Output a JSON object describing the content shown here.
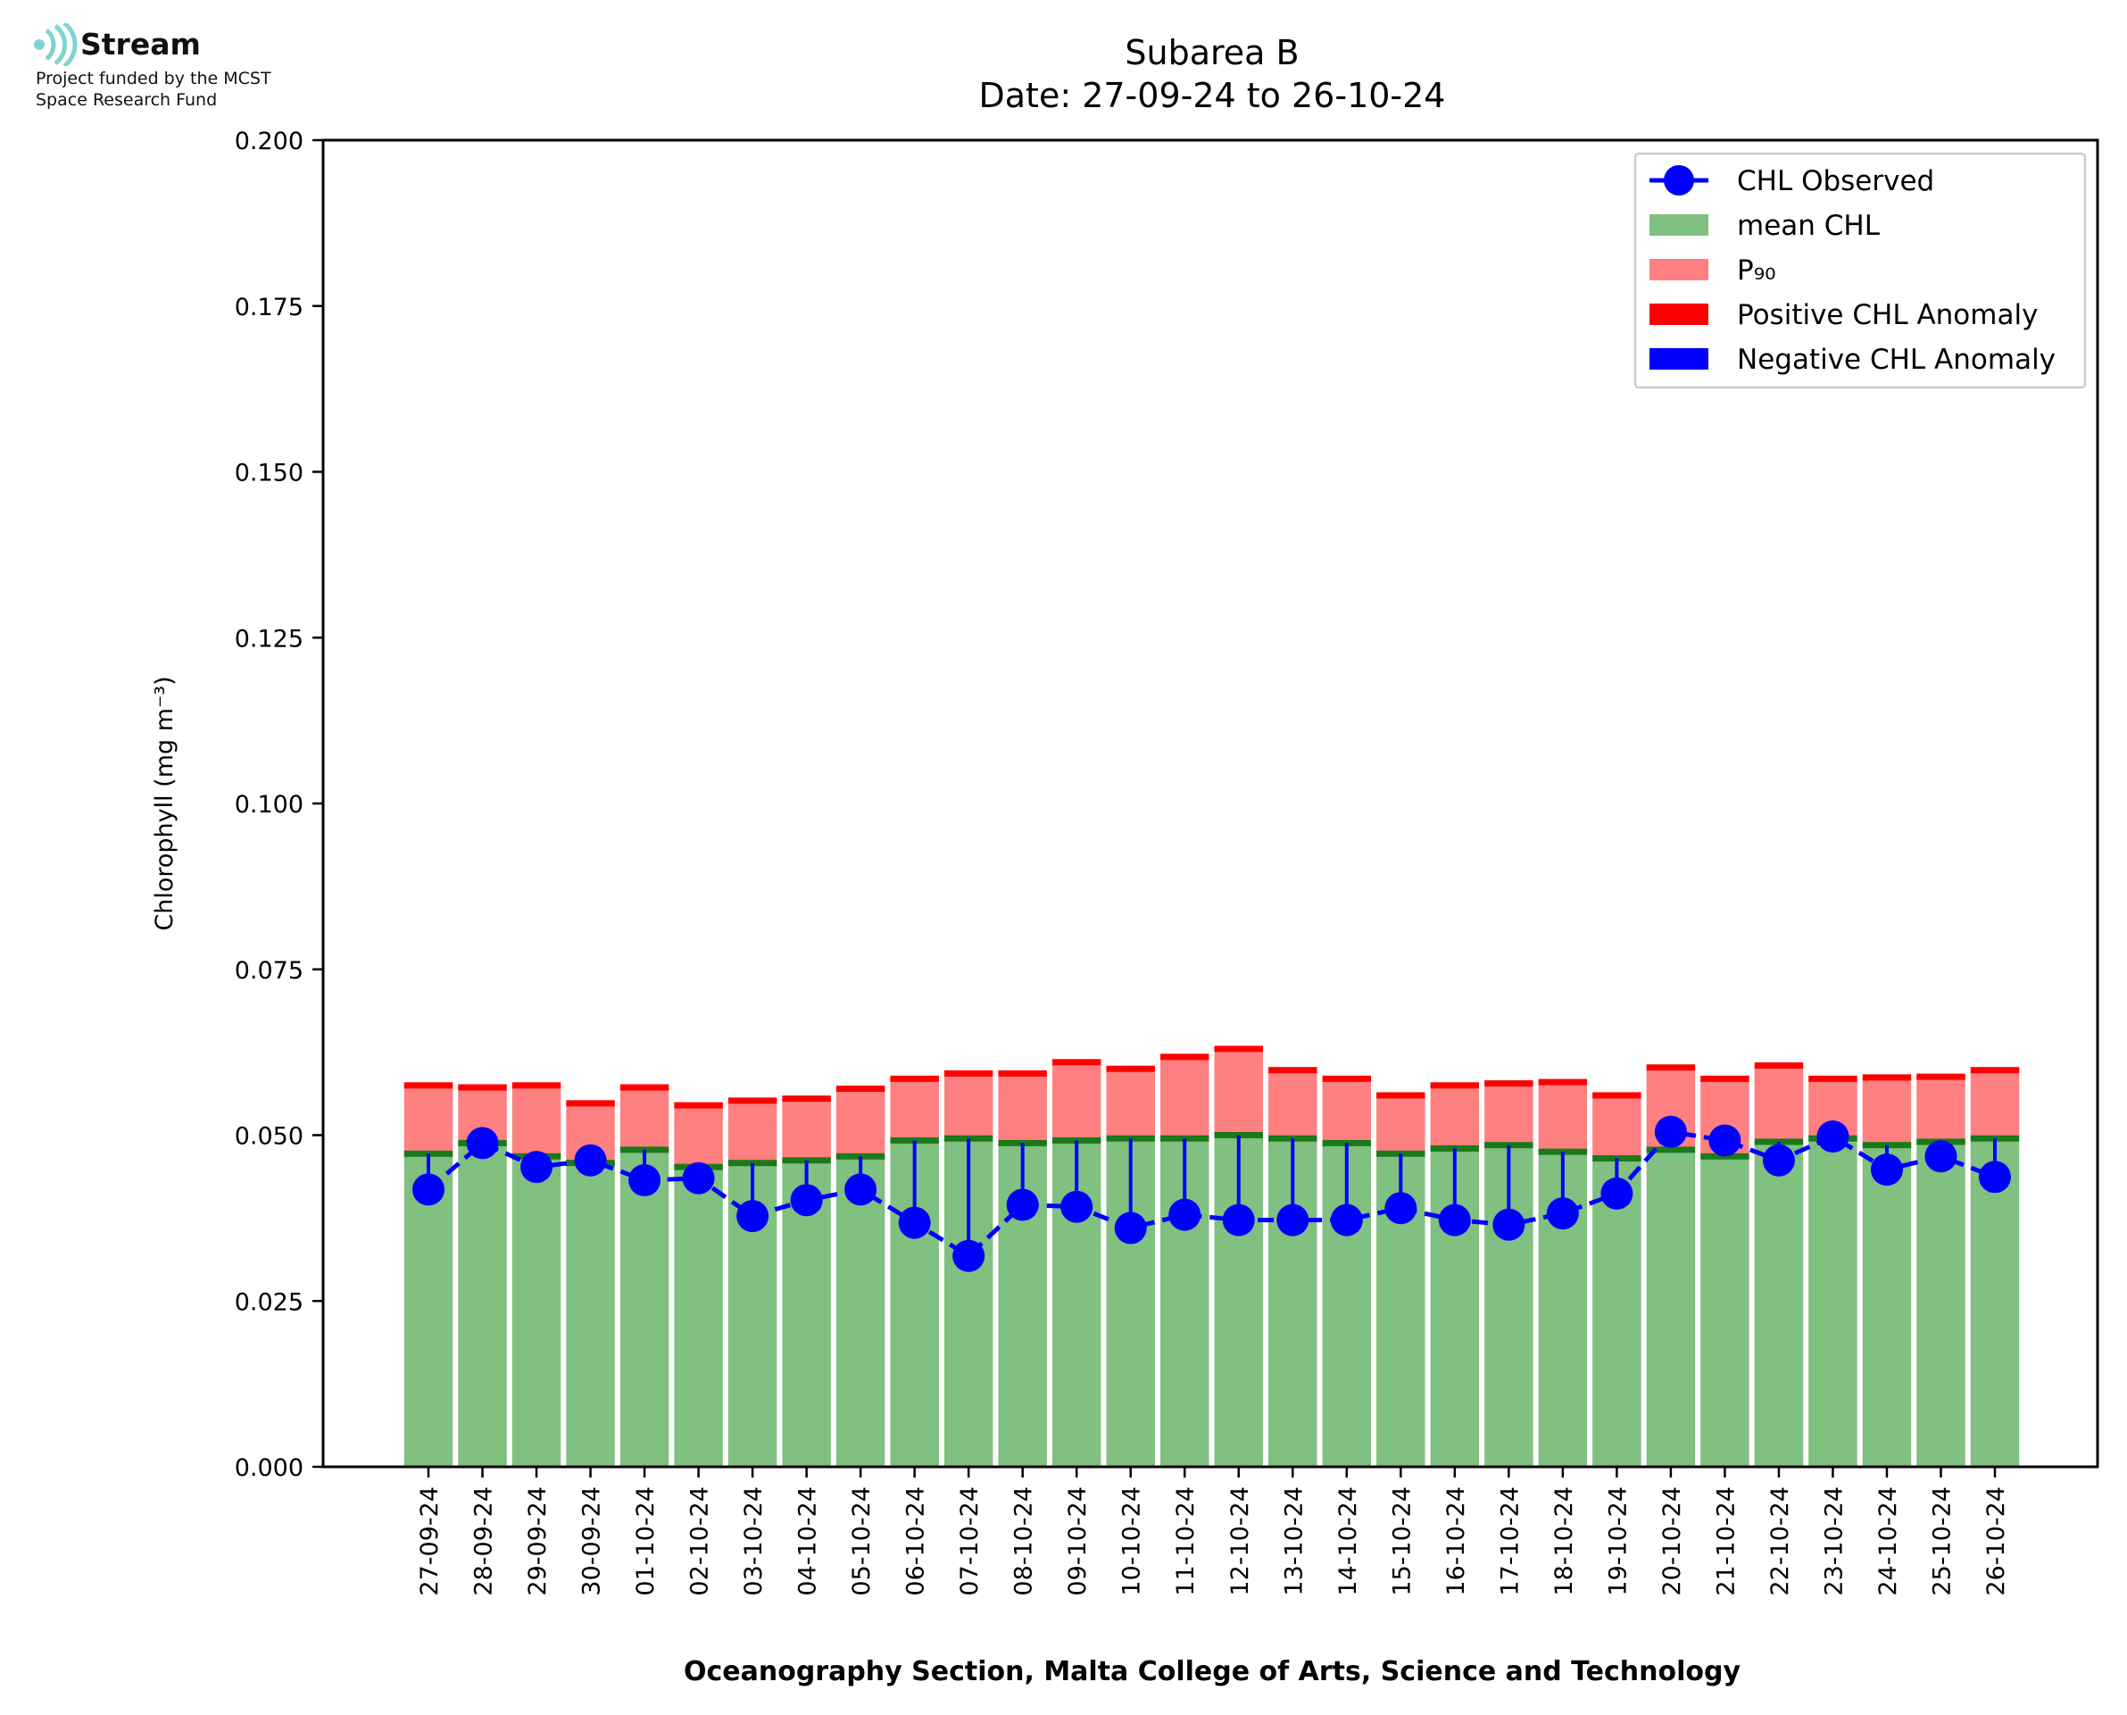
{
  "logo": {
    "brand": "Stream",
    "funded_line1": "Project funded by the MCST",
    "funded_line2": "Space Research Fund",
    "color": "#7fd3d3"
  },
  "chart_data": {
    "type": "bar",
    "title": "Subarea B",
    "subtitle": "Date: 27-09-24 to 26-10-24",
    "xlabel": "Oceanography Section, Malta College of Arts, Science and Technology",
    "ylabel": "Chlorophyll (mg m⁻³)",
    "ylim": [
      0,
      0.2
    ],
    "yticks": [
      "0.000",
      "0.025",
      "0.050",
      "0.075",
      "0.100",
      "0.125",
      "0.150",
      "0.175",
      "0.200"
    ],
    "legend_position": "top-right",
    "grid": false,
    "categories": [
      "27-09-24",
      "28-09-24",
      "29-09-24",
      "30-09-24",
      "01-10-24",
      "02-10-24",
      "03-10-24",
      "04-10-24",
      "05-10-24",
      "06-10-24",
      "07-10-24",
      "08-10-24",
      "09-10-24",
      "10-10-24",
      "11-10-24",
      "12-10-24",
      "13-10-24",
      "14-10-24",
      "15-10-24",
      "16-10-24",
      "17-10-24",
      "18-10-24",
      "19-10-24",
      "20-10-24",
      "21-10-24",
      "22-10-24",
      "23-10-24",
      "24-10-24",
      "25-10-24",
      "26-10-24"
    ],
    "series": [
      {
        "name": "CHL Observed",
        "color": "#0000ff",
        "values": [
          0.0418,
          0.0488,
          0.0452,
          0.0462,
          0.0432,
          0.0435,
          0.0378,
          0.0402,
          0.0418,
          0.0368,
          0.0318,
          0.0395,
          0.0392,
          0.036,
          0.038,
          0.0372,
          0.0372,
          0.0372,
          0.039,
          0.0372,
          0.0365,
          0.0382,
          0.0412,
          0.0505,
          0.0492,
          0.0462,
          0.0498,
          0.0448,
          0.0468,
          0.0437
        ]
      },
      {
        "name": "mean CHL",
        "color": "#80c080",
        "values": [
          0.0472,
          0.0488,
          0.0468,
          0.0458,
          0.0478,
          0.0452,
          0.0458,
          0.0462,
          0.0468,
          0.0492,
          0.0495,
          0.0488,
          0.0492,
          0.0495,
          0.0495,
          0.05,
          0.0495,
          0.0488,
          0.0472,
          0.048,
          0.0485,
          0.0475,
          0.0465,
          0.0478,
          0.0468,
          0.049,
          0.0495,
          0.0485,
          0.049,
          0.0495
        ]
      },
      {
        "name": "P₉₀",
        "color": "#ff8080",
        "values": [
          0.0575,
          0.0572,
          0.0575,
          0.0548,
          0.0572,
          0.0545,
          0.0552,
          0.0555,
          0.057,
          0.0585,
          0.0593,
          0.0593,
          0.061,
          0.06,
          0.0618,
          0.063,
          0.0598,
          0.0585,
          0.056,
          0.0575,
          0.0578,
          0.058,
          0.056,
          0.0602,
          0.0585,
          0.0605,
          0.0585,
          0.0587,
          0.0588,
          0.0598
        ]
      },
      {
        "name": "Positive CHL Anomaly",
        "color": "#ff0000"
      },
      {
        "name": "Negative CHL Anomaly",
        "color": "#0000ff"
      }
    ]
  }
}
